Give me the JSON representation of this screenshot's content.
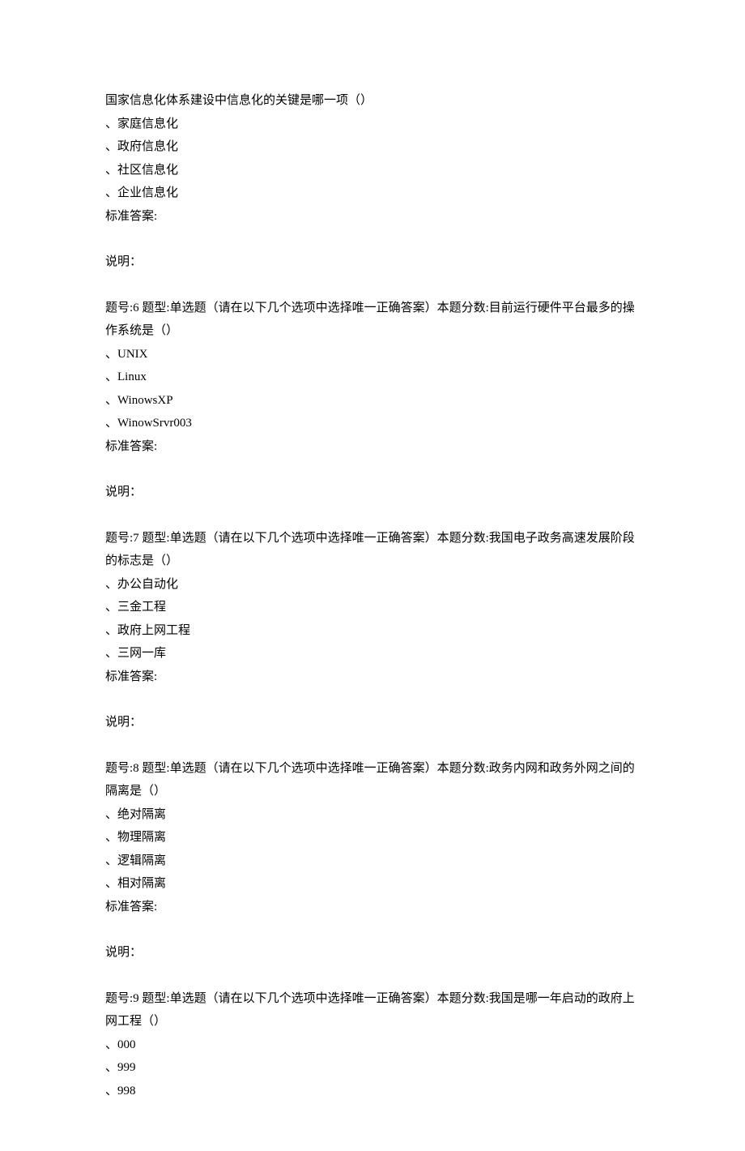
{
  "text_color": "#000000",
  "background_color": "#ffffff",
  "font_size": 15,
  "q5_partial": {
    "stem_line": "国家信息化体系建设中信息化的关键是哪一项（）",
    "options": [
      "、家庭信息化",
      "、政府信息化",
      "、社区信息化",
      "、企业信息化"
    ],
    "answer_label": "标准答案:",
    "explain_label": "说明："
  },
  "q6": {
    "header": "题号:6 题型:单选题（请在以下几个选项中选择唯一正确答案）本题分数:目前运行硬件平台最多的操作系统是（）",
    "options": [
      "、UNIX",
      "、Linux",
      "、WinowsXP",
      "、WinowSrvr003"
    ],
    "answer_label": "标准答案:",
    "explain_label": "说明："
  },
  "q7": {
    "header": "题号:7 题型:单选题（请在以下几个选项中选择唯一正确答案）本题分数:我国电子政务高速发展阶段的标志是（）",
    "options": [
      "、办公自动化",
      "、三金工程",
      "、政府上网工程",
      "、三网一库"
    ],
    "answer_label": "标准答案:",
    "explain_label": "说明："
  },
  "q8": {
    "header": "题号:8 题型:单选题（请在以下几个选项中选择唯一正确答案）本题分数:政务内网和政务外网之间的隔离是（）",
    "options": [
      "、绝对隔离",
      "、物理隔离",
      "、逻辑隔离",
      "、相对隔离"
    ],
    "answer_label": "标准答案:",
    "explain_label": "说明："
  },
  "q9": {
    "header": "题号:9 题型:单选题（请在以下几个选项中选择唯一正确答案）本题分数:我国是哪一年启动的政府上网工程（）",
    "options": [
      "、000",
      "、999",
      "、998"
    ]
  }
}
